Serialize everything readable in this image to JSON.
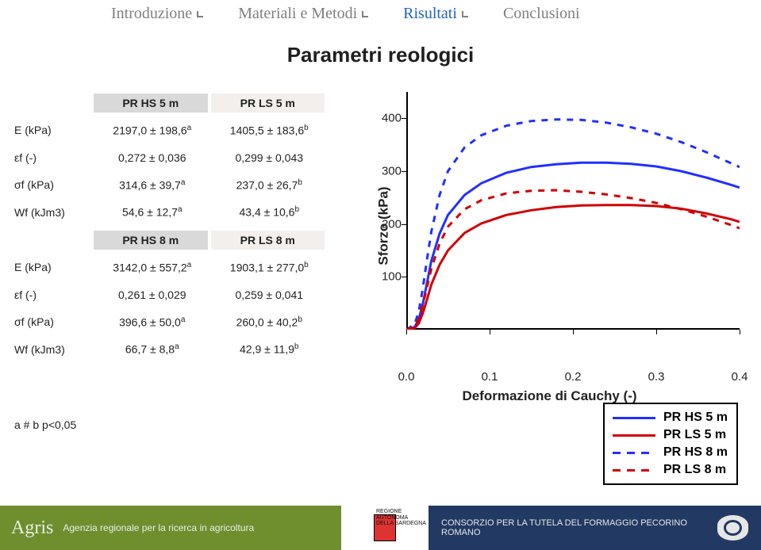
{
  "nav": {
    "items": [
      "Introduzione",
      "Materiali e Metodi",
      "Risultati",
      "Conclusioni"
    ],
    "active_index": 2
  },
  "title": "Parametri reologici",
  "tables": {
    "block1": {
      "head_a": "PR HS 5 m",
      "head_b": "PR LS 5 m",
      "rows": [
        {
          "label": "E (kPa)",
          "a": "2197,0 ± 198,6",
          "asup": "a",
          "b": "1405,5 ± 183,6",
          "bsup": "b"
        },
        {
          "label": "εf (-)",
          "a": "0,272 ± 0,036",
          "asup": "",
          "b": "0,299 ± 0,043",
          "bsup": ""
        },
        {
          "label": "σf (kPa)",
          "a": "314,6 ± 39,7",
          "asup": "a",
          "b": "237,0 ± 26,7",
          "bsup": "b"
        },
        {
          "label": "Wf (kJm3)",
          "a": "54,6 ± 12,7",
          "asup": "a",
          "b": "43,4 ± 10,6",
          "bsup": "b"
        }
      ]
    },
    "block2": {
      "head_a": "PR HS 8 m",
      "head_b": "PR LS 8 m",
      "rows": [
        {
          "label": "E (kPa)",
          "a": "3142,0 ± 557,2",
          "asup": "a",
          "b": "1903,1 ± 277,0",
          "bsup": "b"
        },
        {
          "label": "εf (-)",
          "a": "0,261 ± 0,029",
          "asup": "",
          "b": "0,259 ± 0,041",
          "bsup": ""
        },
        {
          "label": "σf (kPa)",
          "a": "396,6 ± 50,0",
          "asup": "a",
          "b": "260,0 ± 40,2",
          "bsup": "b"
        },
        {
          "label": "Wf (kJm3)",
          "a": "66,7 ± 8,8",
          "asup": "a",
          "b": "42,9 ± 11,9",
          "bsup": "b"
        }
      ]
    }
  },
  "footnote": "a # b p<0,05",
  "chart": {
    "type": "line",
    "ylabel": "Sforzo (kPa)",
    "xlabel": "Deformazione di Cauchy (-)",
    "xlim": [
      0.0,
      0.4
    ],
    "ylim": [
      0,
      450
    ],
    "xticks": [
      0.0,
      0.1,
      0.2,
      0.3,
      0.4
    ],
    "yticks": [
      0,
      100,
      200,
      300,
      400
    ],
    "yticks_visible": [
      100,
      200,
      300,
      400
    ],
    "background_color": "#ffffff",
    "axis_color": "#000000",
    "series": [
      {
        "name": "PR HS 5 m",
        "color": "#2030ff",
        "dash": "none",
        "width": 3,
        "points": [
          [
            0.0,
            0
          ],
          [
            0.01,
            5
          ],
          [
            0.015,
            20
          ],
          [
            0.02,
            50
          ],
          [
            0.025,
            90
          ],
          [
            0.03,
            130
          ],
          [
            0.04,
            182
          ],
          [
            0.05,
            217
          ],
          [
            0.07,
            255
          ],
          [
            0.09,
            277
          ],
          [
            0.12,
            297
          ],
          [
            0.15,
            308
          ],
          [
            0.18,
            313
          ],
          [
            0.21,
            316
          ],
          [
            0.24,
            316
          ],
          [
            0.27,
            314
          ],
          [
            0.3,
            309
          ],
          [
            0.33,
            300
          ],
          [
            0.36,
            288
          ],
          [
            0.39,
            274
          ],
          [
            0.4,
            269
          ]
        ]
      },
      {
        "name": "PR LS 5 m",
        "color": "#d00000",
        "dash": "none",
        "width": 3,
        "points": [
          [
            0.0,
            0
          ],
          [
            0.01,
            3
          ],
          [
            0.015,
            12
          ],
          [
            0.02,
            32
          ],
          [
            0.025,
            58
          ],
          [
            0.03,
            85
          ],
          [
            0.04,
            123
          ],
          [
            0.05,
            150
          ],
          [
            0.07,
            183
          ],
          [
            0.09,
            201
          ],
          [
            0.12,
            217
          ],
          [
            0.15,
            226
          ],
          [
            0.18,
            232
          ],
          [
            0.21,
            235
          ],
          [
            0.24,
            236
          ],
          [
            0.27,
            236
          ],
          [
            0.3,
            234
          ],
          [
            0.33,
            229
          ],
          [
            0.36,
            220
          ],
          [
            0.39,
            209
          ],
          [
            0.4,
            204
          ]
        ]
      },
      {
        "name": "PR HS 8 m",
        "color": "#2030ff",
        "dash": "8,8",
        "width": 3,
        "points": [
          [
            0.0,
            0
          ],
          [
            0.01,
            10
          ],
          [
            0.015,
            35
          ],
          [
            0.02,
            80
          ],
          [
            0.025,
            135
          ],
          [
            0.03,
            185
          ],
          [
            0.04,
            255
          ],
          [
            0.05,
            300
          ],
          [
            0.07,
            345
          ],
          [
            0.09,
            368
          ],
          [
            0.12,
            386
          ],
          [
            0.15,
            395
          ],
          [
            0.18,
            398
          ],
          [
            0.21,
            397
          ],
          [
            0.24,
            392
          ],
          [
            0.27,
            383
          ],
          [
            0.3,
            371
          ],
          [
            0.33,
            355
          ],
          [
            0.36,
            336
          ],
          [
            0.39,
            315
          ],
          [
            0.4,
            308
          ]
        ]
      },
      {
        "name": "PR LS 8 m",
        "color": "#d00000",
        "dash": "8,8",
        "width": 3,
        "points": [
          [
            0.0,
            0
          ],
          [
            0.01,
            6
          ],
          [
            0.015,
            20
          ],
          [
            0.02,
            48
          ],
          [
            0.025,
            82
          ],
          [
            0.03,
            115
          ],
          [
            0.04,
            163
          ],
          [
            0.05,
            195
          ],
          [
            0.07,
            228
          ],
          [
            0.09,
            245
          ],
          [
            0.12,
            258
          ],
          [
            0.15,
            263
          ],
          [
            0.18,
            264
          ],
          [
            0.21,
            261
          ],
          [
            0.24,
            256
          ],
          [
            0.27,
            249
          ],
          [
            0.3,
            240
          ],
          [
            0.33,
            228
          ],
          [
            0.36,
            214
          ],
          [
            0.39,
            198
          ],
          [
            0.4,
            192
          ]
        ]
      }
    ],
    "legend": {
      "items": [
        {
          "label": "PR HS 5 m",
          "color": "#2030ff",
          "dash": "none"
        },
        {
          "label": "PR LS 5 m",
          "color": "#d00000",
          "dash": "none"
        },
        {
          "label": "PR HS 8 m",
          "color": "#2030ff",
          "dash": "8,8"
        },
        {
          "label": "PR LS 8 m",
          "color": "#d00000",
          "dash": "8,8"
        }
      ]
    }
  },
  "footer": {
    "agris_logo": "Agris",
    "agris_sub": "Agenzia regionale per la ricerca in agricoltura",
    "region_lines": [
      "REGIONE",
      "AUTONOMA",
      "DELLA SARDEGNA"
    ],
    "consorzio": "CONSORZIO PER LA TUTELA DEL FORMAGGIO PECORINO ROMANO"
  }
}
